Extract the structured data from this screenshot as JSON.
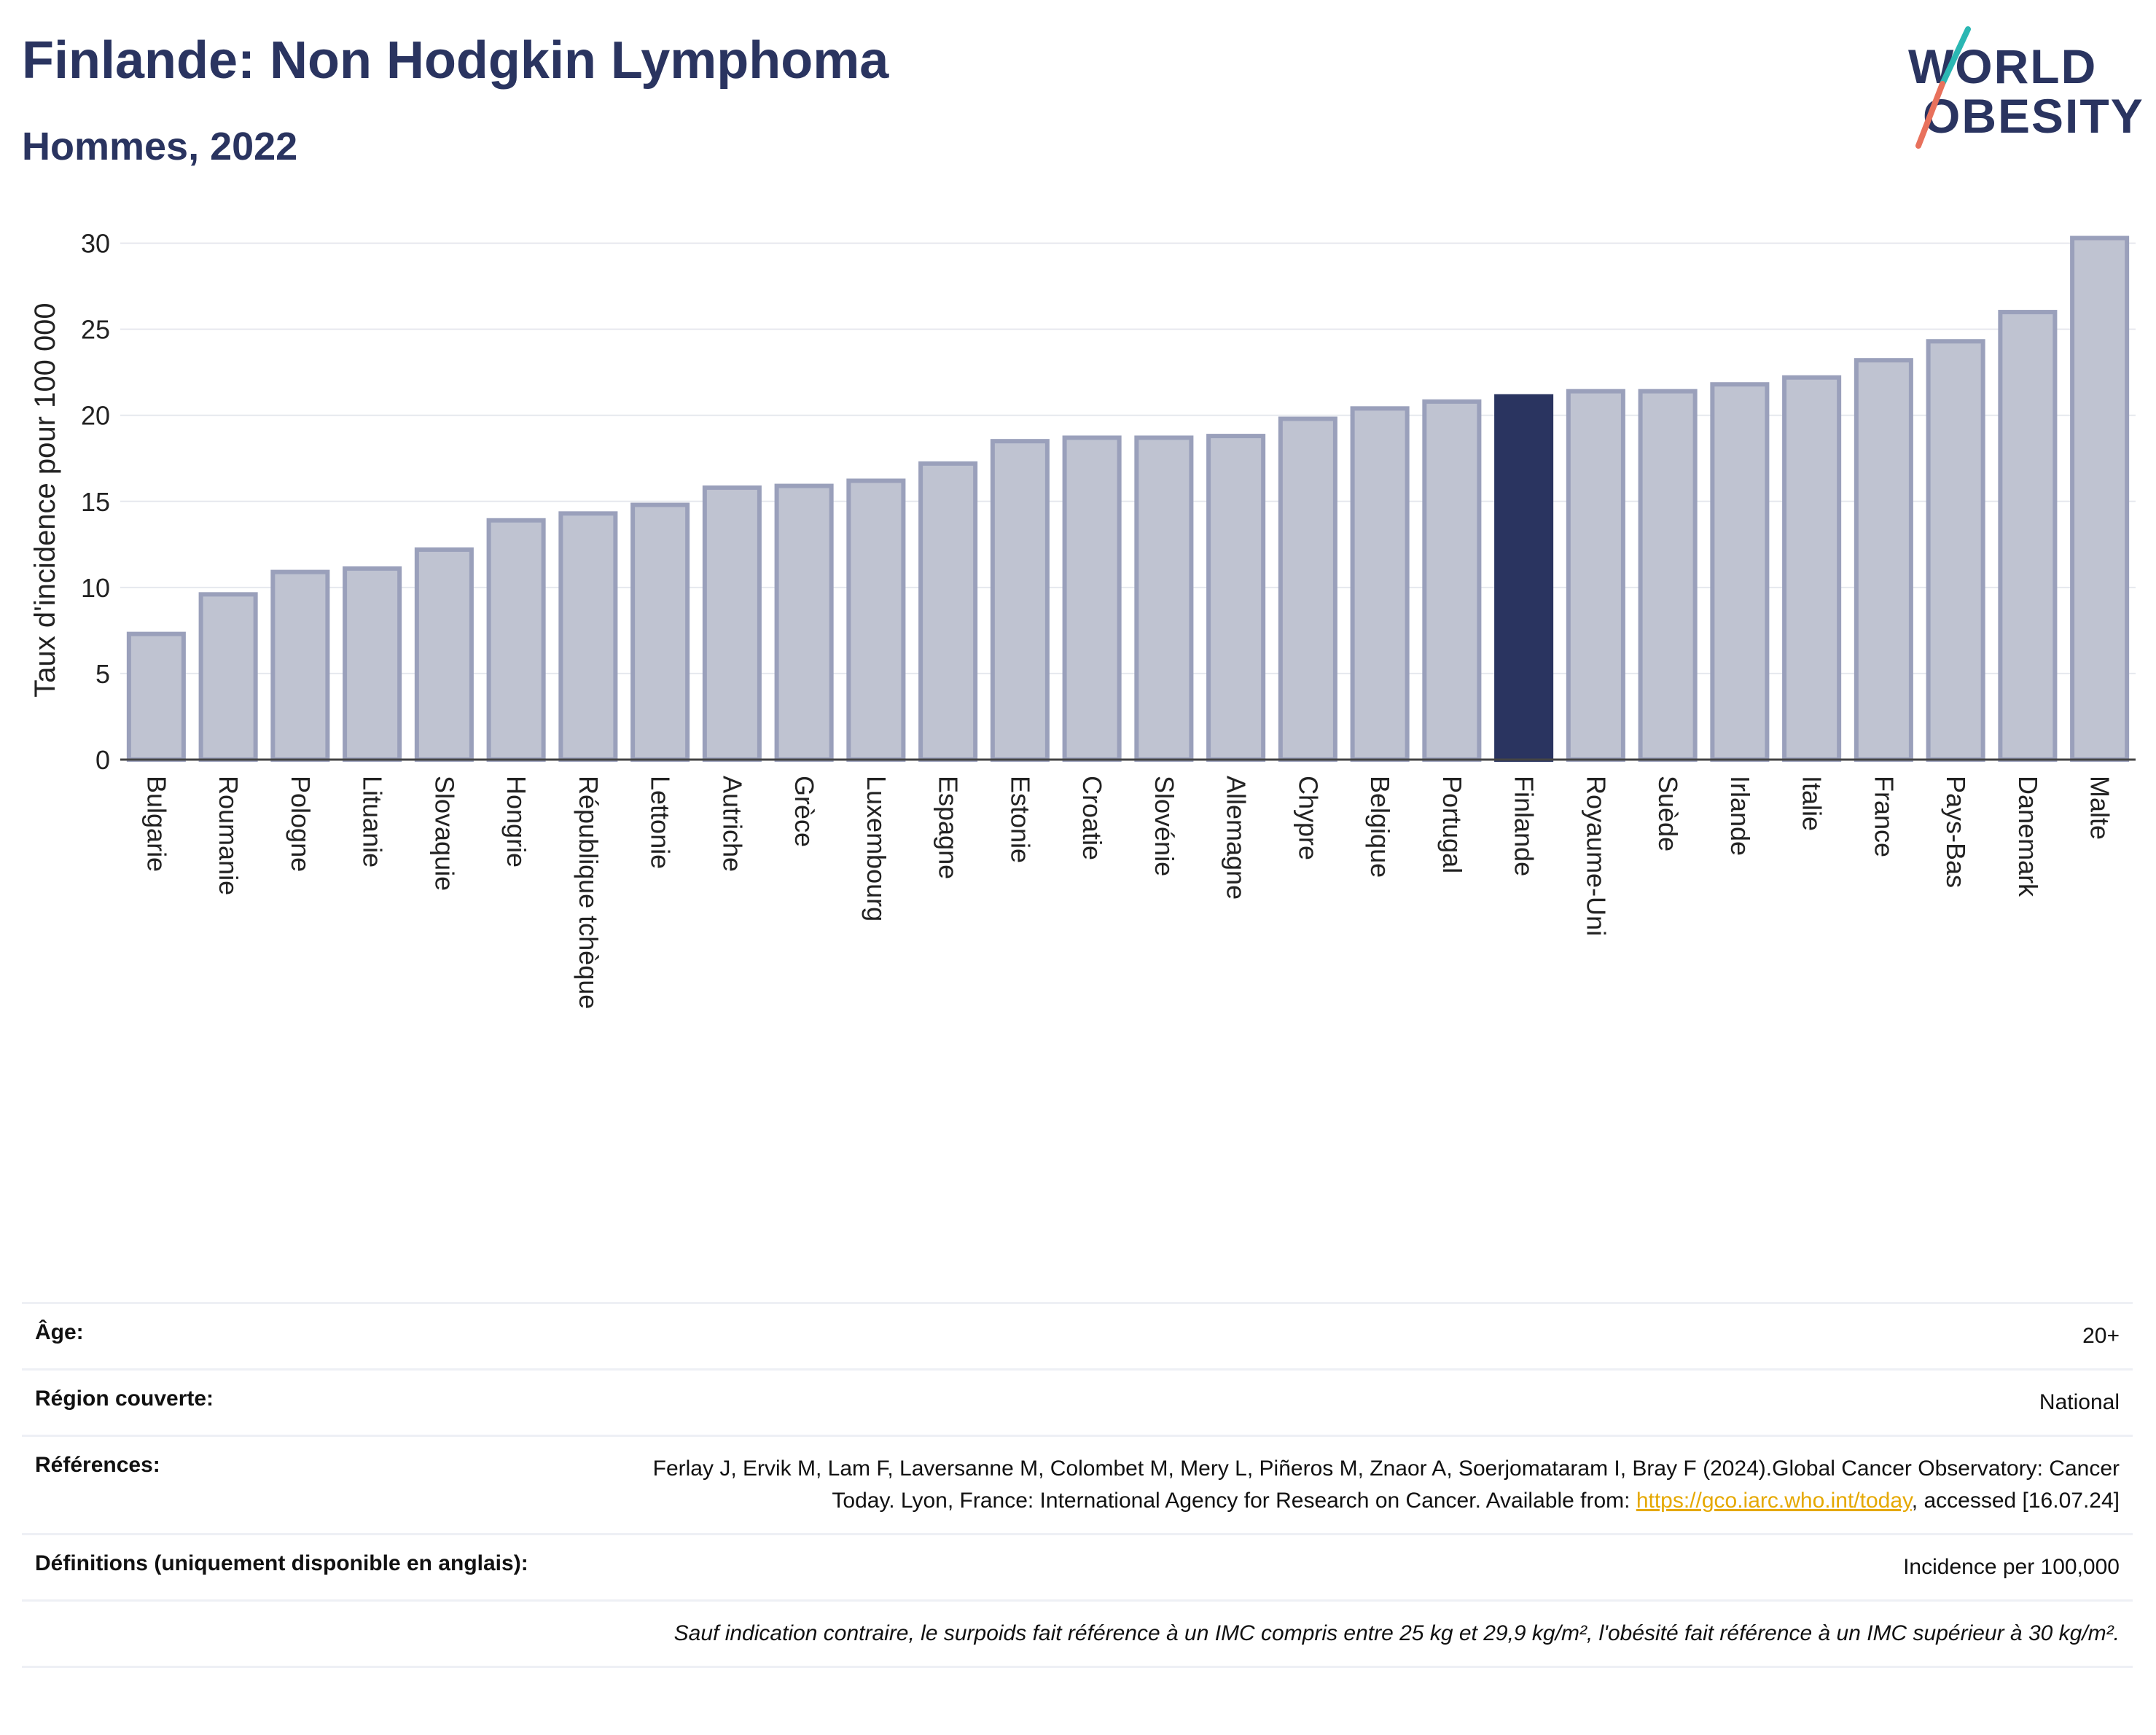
{
  "header": {
    "title": "Finlande: Non Hodgkin Lymphoma",
    "subtitle": "Hommes, 2022"
  },
  "logo": {
    "line1": "WORLD",
    "line2": "OBESITY"
  },
  "colors": {
    "title": "#2a3460",
    "bar": "#bfc3d1",
    "bar_border": "#9aa0bb",
    "highlight": "#2a3460",
    "link": "#e5a800"
  },
  "chart_data": {
    "type": "bar",
    "ylabel": "Taux d'incidence pour 100 000",
    "ylim": [
      0,
      31
    ],
    "yticks": [
      0,
      5,
      10,
      15,
      20,
      25,
      30
    ],
    "grid": true,
    "highlight": "Finlande",
    "categories": [
      "Bulgarie",
      "Roumanie",
      "Pologne",
      "Lituanie",
      "Slovaquie",
      "Hongrie",
      "République tchèque",
      "Lettonie",
      "Autriche",
      "Grèce",
      "Luxembourg",
      "Espagne",
      "Estonie",
      "Croatie",
      "Slovénie",
      "Allemagne",
      "Chypre",
      "Belgique",
      "Portugal",
      "Finlande",
      "Royaume-Uni",
      "Suède",
      "Irlande",
      "Italie",
      "France",
      "Pays-Bas",
      "Danemark",
      "Malte"
    ],
    "values": [
      7.3,
      9.6,
      10.9,
      11.1,
      12.2,
      13.9,
      14.3,
      14.8,
      15.8,
      15.9,
      16.2,
      17.2,
      18.5,
      18.7,
      18.7,
      18.8,
      19.8,
      20.4,
      20.8,
      21.1,
      21.4,
      21.4,
      21.8,
      22.2,
      23.2,
      24.3,
      26.0,
      30.3
    ]
  },
  "info": {
    "age_label": "Âge:",
    "age_value": "20+",
    "region_label": "Région couverte:",
    "region_value": "National",
    "refs_label": "Références:",
    "refs_text_1": "Ferlay J, Ervik M, Lam F, Laversanne M, Colombet M, Mery L, Piñeros M, Znaor A, Soerjomataram I, Bray F (2024).Global Cancer Observatory: Cancer Today. Lyon, France: International Agency for Research on Cancer. Available from: ",
    "refs_link": "https://gco.iarc.who.int/today",
    "refs_text_2": ", accessed [16.07.24]",
    "defs_label": "Définitions (uniquement disponible en anglais):",
    "defs_value": "Incidence per 100,000",
    "note": "Sauf indication contraire, le surpoids fait référence à un IMC compris entre 25 kg et 29,9 kg/m², l'obésité fait référence à un IMC supérieur à 30 kg/m²."
  }
}
